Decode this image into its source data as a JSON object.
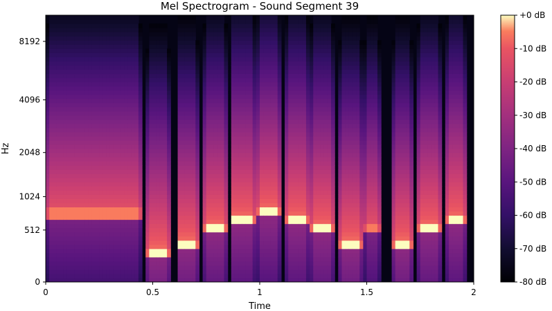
{
  "chart_data": {
    "type": "heatmap",
    "title": "Mel Spectrogram - Sound Segment 39",
    "xlabel": "Time",
    "ylabel": "Hz",
    "xlim": [
      0,
      2
    ],
    "yscale": "mel",
    "x_ticks": [
      {
        "value": 0,
        "label": "0"
      },
      {
        "value": 0.5,
        "label": "0.5"
      },
      {
        "value": 1,
        "label": "1"
      },
      {
        "value": 1.5,
        "label": "1.5"
      },
      {
        "value": 2,
        "label": "2"
      }
    ],
    "y_ticks": [
      {
        "value": 0,
        "label": "0"
      },
      {
        "value": 512,
        "label": "512"
      },
      {
        "value": 1024,
        "label": "1024"
      },
      {
        "value": 2048,
        "label": "2048"
      },
      {
        "value": 4096,
        "label": "4096"
      },
      {
        "value": 8192,
        "label": "8192"
      }
    ],
    "colormap": "magma",
    "colorbar": {
      "range": [
        -80,
        0
      ],
      "ticks": [
        {
          "value": 0,
          "label": "+0 dB"
        },
        {
          "value": -10,
          "label": "-10 dB"
        },
        {
          "value": -20,
          "label": "-20 dB"
        },
        {
          "value": -30,
          "label": "-30 dB"
        },
        {
          "value": -40,
          "label": "-40 dB"
        },
        {
          "value": -50,
          "label": "-50 dB"
        },
        {
          "value": -60,
          "label": "-60 dB"
        },
        {
          "value": -70,
          "label": "-70 dB"
        },
        {
          "value": -80,
          "label": "-80 dB"
        }
      ]
    },
    "events": [
      {
        "start": 0.0,
        "end": 0.45,
        "f0_hz": 750,
        "level_db": -5
      },
      {
        "start": 0.47,
        "end": 0.58,
        "f0_hz": 260,
        "level_db": 0
      },
      {
        "start": 0.61,
        "end": 0.72,
        "f0_hz": 350,
        "level_db": 0
      },
      {
        "start": 0.74,
        "end": 0.85,
        "f0_hz": 530,
        "level_db": 0
      },
      {
        "start": 0.86,
        "end": 0.98,
        "f0_hz": 650,
        "level_db": 0
      },
      {
        "start": 0.99,
        "end": 1.1,
        "f0_hz": 770,
        "level_db": 0
      },
      {
        "start": 1.12,
        "end": 1.23,
        "f0_hz": 650,
        "level_db": 0
      },
      {
        "start": 1.24,
        "end": 1.35,
        "f0_hz": 530,
        "level_db": 0
      },
      {
        "start": 1.37,
        "end": 1.48,
        "f0_hz": 350,
        "level_db": 0
      },
      {
        "start": 1.49,
        "end": 1.56,
        "f0_hz": 530,
        "level_db": -5
      },
      {
        "start": 1.61,
        "end": 1.72,
        "f0_hz": 350,
        "level_db": 0
      },
      {
        "start": 1.74,
        "end": 1.85,
        "f0_hz": 530,
        "level_db": 0
      },
      {
        "start": 1.86,
        "end": 1.96,
        "f0_hz": 650,
        "level_db": 0
      }
    ]
  }
}
